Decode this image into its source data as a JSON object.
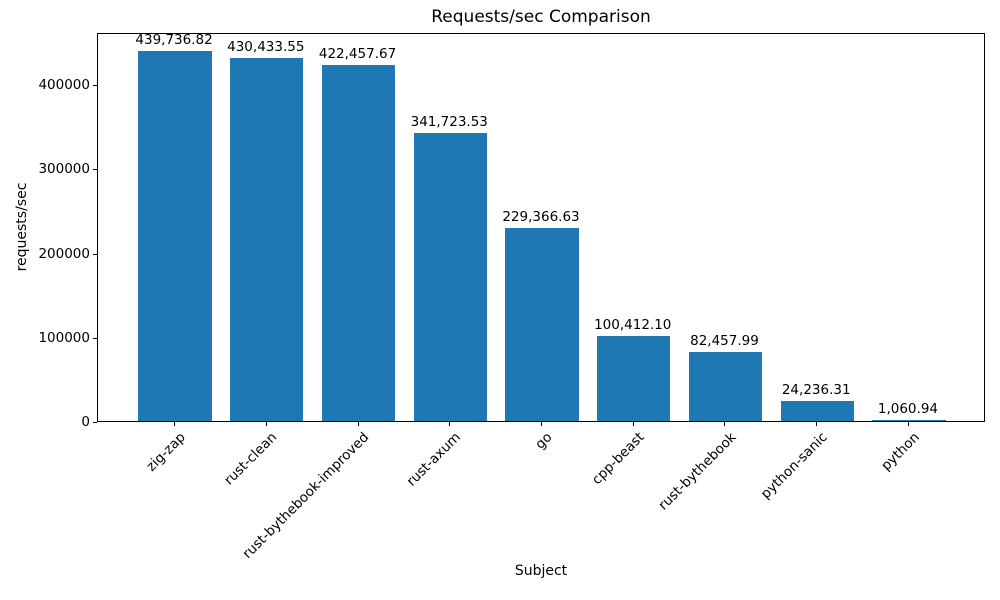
{
  "chart_data": {
    "type": "bar",
    "title": "Requests/sec Comparison",
    "xlabel": "Subject",
    "ylabel": "requests/sec",
    "categories": [
      "zig-zap",
      "rust-clean",
      "rust-bythebook-improved",
      "rust-axum",
      "go",
      "cpp-beast",
      "rust-bythebook",
      "python-sanic",
      "python"
    ],
    "values": [
      439736.82,
      430433.55,
      422457.67,
      341723.53,
      229366.63,
      100412.1,
      82457.99,
      24236.31,
      1060.94
    ],
    "value_labels": [
      "439,736.82",
      "430,433.55",
      "422,457.67",
      "341,723.53",
      "229,366.63",
      "100,412.10",
      "82,457.99",
      "24,236.31",
      "1,060.94"
    ],
    "yticks": [
      0,
      100000,
      200000,
      300000,
      400000
    ],
    "ytick_labels": [
      "0",
      "100000",
      "200000",
      "300000",
      "400000"
    ],
    "ylim": [
      0,
      461723.66
    ],
    "bar_color": "#1f77b4",
    "grid": false,
    "legend_position": "none",
    "x_label_rotation_deg": 45
  }
}
